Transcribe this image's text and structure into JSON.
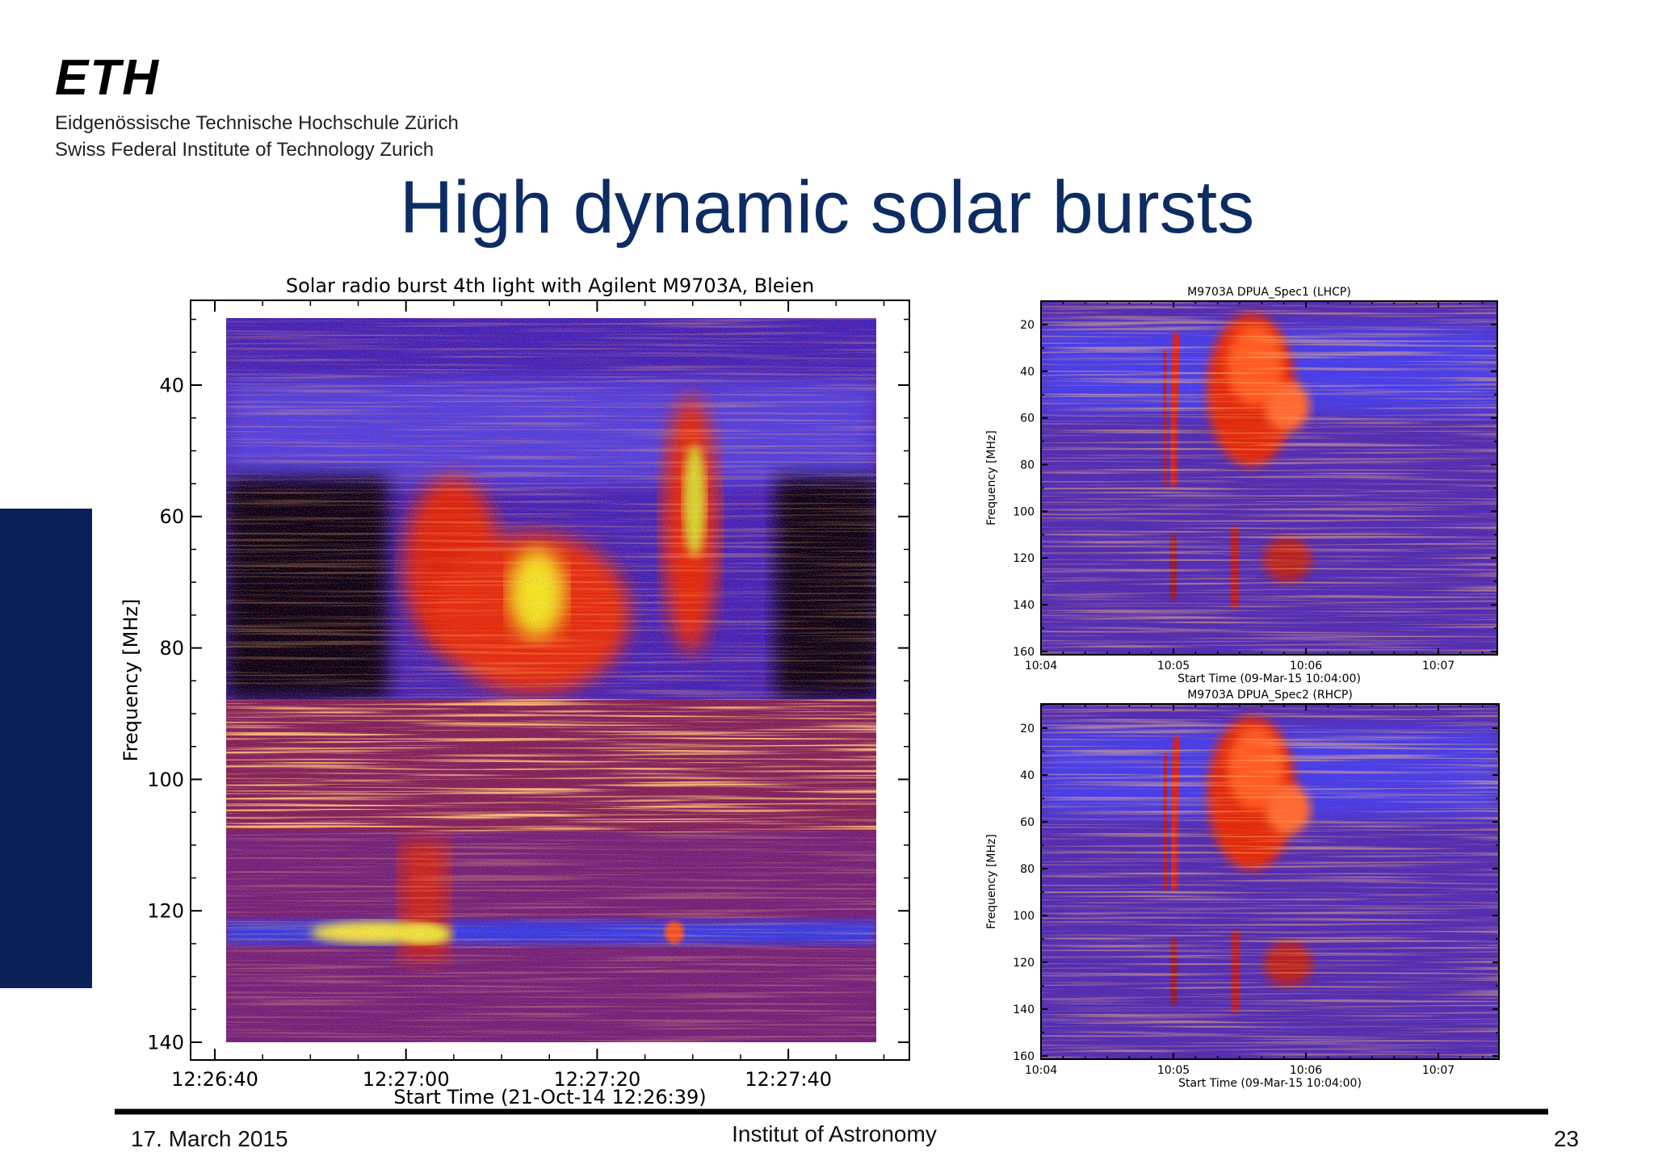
{
  "header": {
    "logo": "ETH",
    "line1": "Eidgenössische Technische Hochschule Zürich",
    "line2": "Swiss Federal Institute of Technology Zurich"
  },
  "title": "High dynamic solar bursts",
  "figures": [
    {
      "title": "Solar radio burst 4th light with Agilent M9703A, Bleien",
      "y_label": "Frequency [MHz]",
      "x_label": "Start Time (21-Oct-14 12:26:39)",
      "yticks": [
        "40",
        "60",
        "80",
        "100",
        "120",
        "140"
      ],
      "xticks": [
        "12:26:40",
        "12:27:00",
        "12:27:20",
        "12:27:40"
      ]
    },
    {
      "title": "M9703A DPUA_Spec1 (LHCP)",
      "y_label": "Frequency [MHz]",
      "x_label": "Start Time (09-Mar-15 10:04:00)",
      "yticks": [
        "20",
        "40",
        "60",
        "80",
        "100",
        "120",
        "140",
        "160"
      ],
      "xticks": [
        "10:04",
        "10:05",
        "10:06",
        "10:07"
      ]
    },
    {
      "title": "M9703A DPUA_Spec2 (RHCP)",
      "y_label": "Frequency [MHz]",
      "x_label": "Start Time (09-Mar-15 10:04:00)",
      "yticks": [
        "20",
        "40",
        "60",
        "80",
        "100",
        "120",
        "140",
        "160"
      ],
      "xticks": [
        "10:04",
        "10:05",
        "10:06",
        "10:07"
      ]
    }
  ],
  "footer": {
    "date": "17. March 2015",
    "institute": "Institut of Astronomy",
    "page": "23"
  }
}
